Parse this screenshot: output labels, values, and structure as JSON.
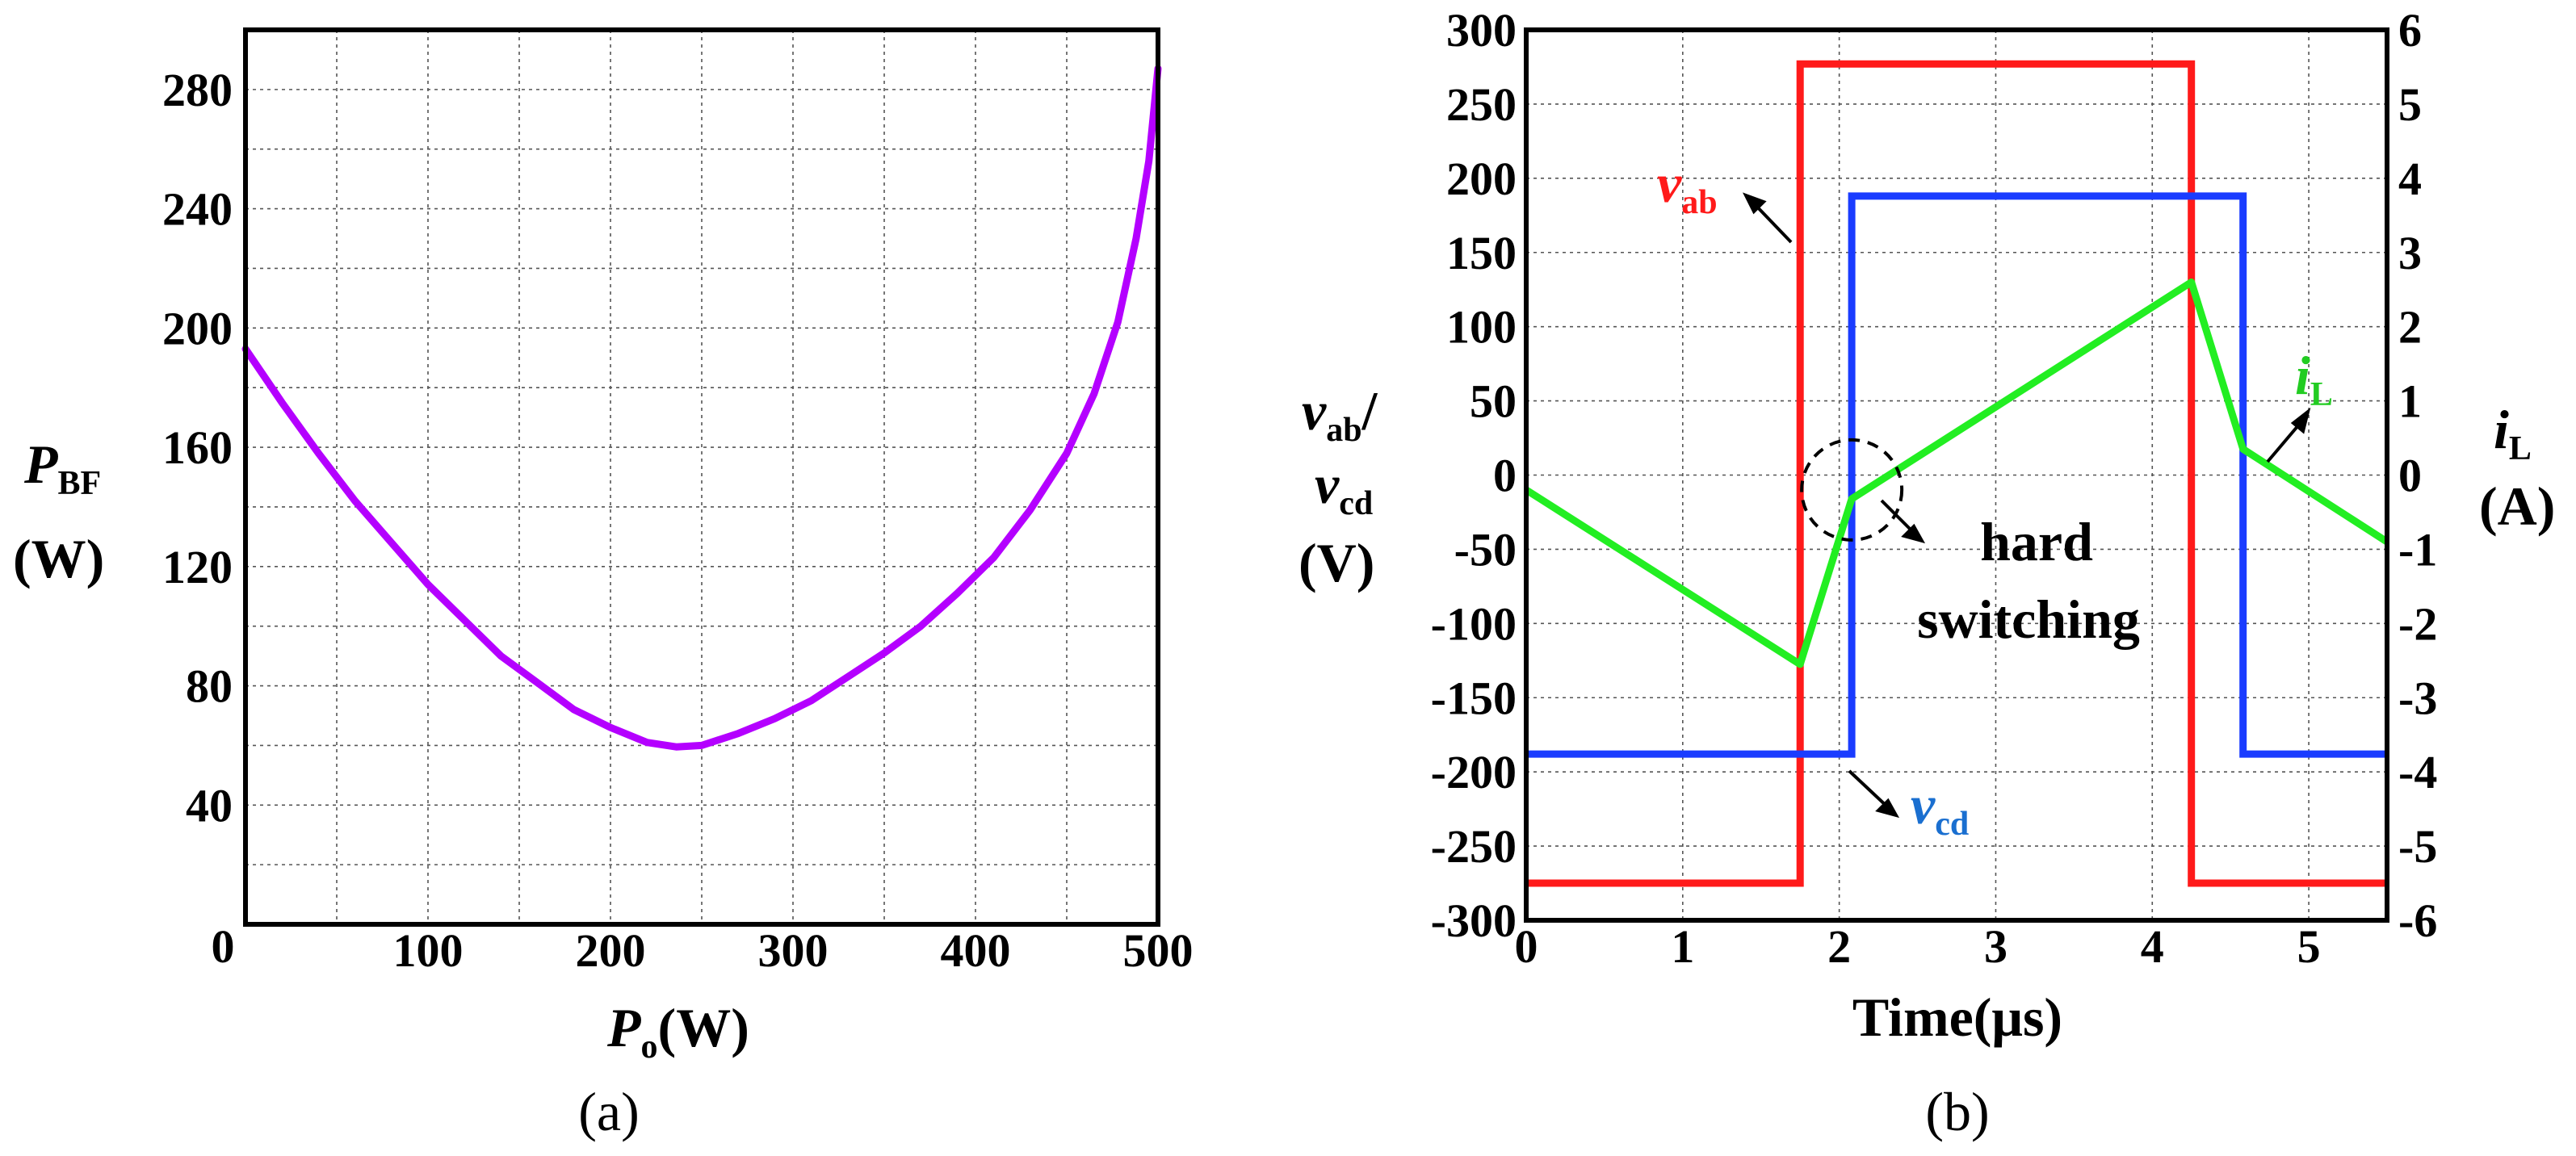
{
  "chart_data": [
    {
      "type": "line",
      "panel_caption": "(a)",
      "title": "",
      "xlabel_var": "P",
      "xlabel_sub": "o",
      "xlabel_unit": "(W)",
      "ylabel_var": "P",
      "ylabel_sub": "BF",
      "ylabel_unit": "(W)",
      "xlim": [
        0,
        500
      ],
      "ylim": [
        0,
        300
      ],
      "xticks": [
        100,
        200,
        300,
        400,
        500
      ],
      "yticks": [
        40,
        80,
        120,
        160,
        200,
        240,
        280
      ],
      "origin_label": "0",
      "grid": true,
      "series": [
        {
          "name": "P_BF",
          "color": "#b400ff",
          "x": [
            0,
            20,
            40,
            60,
            80,
            100,
            120,
            140,
            160,
            180,
            200,
            220,
            236,
            250,
            270,
            290,
            310,
            330,
            350,
            370,
            390,
            410,
            430,
            450,
            465,
            478,
            488,
            495,
            500
          ],
          "y": [
            193,
            175,
            158,
            142,
            128,
            114,
            102,
            90,
            81,
            72,
            66,
            61,
            59.5,
            60,
            64,
            69,
            75,
            83,
            91,
            100,
            111,
            123,
            139,
            158,
            178,
            202,
            230,
            256,
            287
          ]
        }
      ]
    },
    {
      "type": "line",
      "panel_caption": "(b)",
      "title": "",
      "xlabel": "Time(μs)",
      "xlim": [
        0,
        5.5
      ],
      "xticks": [
        0,
        1,
        2,
        3,
        4,
        5
      ],
      "ylim_left": [
        -300,
        300
      ],
      "yticks_left": [
        -300,
        -250,
        -200,
        -150,
        -100,
        -50,
        0,
        50,
        100,
        150,
        200,
        250,
        300
      ],
      "ylim_right": [
        -6,
        6
      ],
      "yticks_right": [
        -6,
        -5,
        -4,
        -3,
        -2,
        -1,
        0,
        1,
        2,
        3,
        4,
        5,
        6
      ],
      "ylabel_left": {
        "v1": "v",
        "s1": "ab",
        "slash": "/",
        "v2": "v",
        "s2": "cd",
        "unit": "(V)"
      },
      "ylabel_right": {
        "v": "i",
        "s": "L",
        "unit": "(A)"
      },
      "grid": true,
      "series": [
        {
          "name": "v_ab",
          "axis": "left",
          "color": "#ff1a1a",
          "x": [
            0,
            1.75,
            1.75,
            4.25,
            4.25,
            5.5
          ],
          "y": [
            -275,
            -275,
            277,
            277,
            -275,
            -275
          ]
        },
        {
          "name": "v_cd",
          "axis": "left",
          "color": "#1a3cff",
          "x": [
            0,
            2.08,
            2.08,
            4.58,
            4.58,
            5.5
          ],
          "y": [
            -188,
            -188,
            188,
            188,
            -188,
            -188
          ]
        },
        {
          "name": "i_L",
          "axis": "right",
          "color": "#22ee22",
          "x": [
            0,
            1.75,
            2.08,
            4.25,
            4.58,
            5.5
          ],
          "y": [
            -0.2,
            -2.55,
            -0.32,
            2.6,
            0.35,
            -0.9
          ]
        }
      ],
      "annotations": {
        "vab": {
          "var": "v",
          "sub": "ab",
          "color": "#ff1a1a"
        },
        "vcd": {
          "var": "v",
          "sub": "cd",
          "color": "#1a6fd0"
        },
        "iL": {
          "var": "i",
          "sub": "L",
          "color": "#22cc22"
        },
        "hard_line1": "hard",
        "hard_line2": "switching",
        "hard_switch_circle_at": {
          "x": 2.08,
          "y": -10
        }
      }
    }
  ]
}
